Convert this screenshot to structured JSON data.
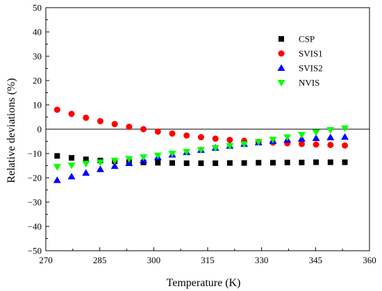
{
  "chart_data": {
    "type": "scatter",
    "xlabel": "Temperature (K)",
    "ylabel": "Relative deviations (%)",
    "xlim": [
      270,
      360
    ],
    "ylim": [
      -50,
      50
    ],
    "x_ticks": [
      270,
      285,
      300,
      315,
      330,
      345,
      360
    ],
    "x_tick_labels": [
      "270",
      "285",
      "300",
      "315",
      "330",
      "345",
      "360"
    ],
    "y_ticks": [
      -50,
      -40,
      -30,
      -20,
      -10,
      0,
      10,
      20,
      30,
      40,
      50
    ],
    "y_tick_labels": [
      "−50",
      "−40",
      "−30",
      "−20",
      "−10",
      "0",
      "10",
      "20",
      "30",
      "40",
      "50"
    ],
    "reference_line_y": 0,
    "grid": false,
    "legend_position": "top-right",
    "x": [
      273.15,
      277.15,
      281.15,
      285.15,
      289.15,
      293.15,
      297.15,
      301.15,
      305.15,
      309.15,
      313.15,
      317.15,
      321.15,
      325.15,
      329.15,
      333.15,
      337.15,
      341.15,
      345.15,
      349.15,
      353.15
    ],
    "series": [
      {
        "name": "CSP",
        "marker": "square",
        "color": "#000000",
        "values": [
          -11.0,
          -11.8,
          -12.4,
          -12.9,
          -13.2,
          -13.5,
          -13.7,
          -13.8,
          -13.9,
          -14.0,
          -14.0,
          -14.0,
          -13.9,
          -13.9,
          -13.8,
          -13.8,
          -13.7,
          -13.7,
          -13.6,
          -13.6,
          -13.6
        ]
      },
      {
        "name": "SVIS1",
        "marker": "circle",
        "color": "#ff0000",
        "values": [
          8.0,
          6.3,
          4.7,
          3.3,
          2.1,
          1.0,
          0.0,
          -1.0,
          -1.8,
          -2.6,
          -3.3,
          -3.9,
          -4.4,
          -4.8,
          -5.2,
          -5.5,
          -5.8,
          -6.1,
          -6.3,
          -6.5,
          -6.7
        ]
      },
      {
        "name": "SVIS2",
        "marker": "triangle-up",
        "color": "#0000ff",
        "values": [
          -21.0,
          -19.5,
          -18.0,
          -16.5,
          -15.2,
          -14.0,
          -12.8,
          -11.6,
          -10.5,
          -9.5,
          -8.6,
          -7.7,
          -6.9,
          -6.1,
          -5.5,
          -4.9,
          -4.4,
          -4.0,
          -3.7,
          -3.4,
          -3.2
        ]
      },
      {
        "name": "NVIS",
        "marker": "triangle-down",
        "color": "#00ff00",
        "values": [
          -15.5,
          -14.9,
          -14.2,
          -13.6,
          -12.9,
          -12.2,
          -11.5,
          -10.8,
          -10.0,
          -9.3,
          -8.5,
          -7.7,
          -6.9,
          -6.1,
          -5.2,
          -4.3,
          -3.3,
          -2.3,
          -1.3,
          -0.3,
          0.4
        ]
      }
    ]
  }
}
